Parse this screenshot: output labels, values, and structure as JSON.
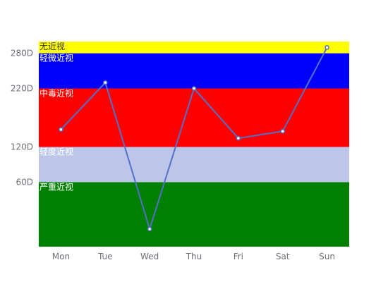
{
  "chart_data": {
    "type": "line",
    "categories": [
      "Mon",
      "Tue",
      "Wed",
      "Thu",
      "Fri",
      "Sat",
      "Sun"
    ],
    "series": [
      {
        "values": [
          150,
          230,
          -20,
          220,
          135,
          147,
          290
        ],
        "color": "#5470c6"
      }
    ],
    "yticks": [
      {
        "value": 60,
        "label": "60D"
      },
      {
        "value": 120,
        "label": "120D"
      },
      {
        "value": 220,
        "label": "220D"
      },
      {
        "value": 280,
        "label": "280D"
      }
    ],
    "ylim": [
      -50,
      300
    ],
    "bands": [
      {
        "from": 280,
        "to": 300,
        "label": "无近视",
        "color": "#ffff00",
        "label_color": "#333333"
      },
      {
        "from": 220,
        "to": 280,
        "label": "轻微近视",
        "color": "#0000ff",
        "label_color": "#ffffff"
      },
      {
        "from": 120,
        "to": 220,
        "label": "中毒近视",
        "color": "#ff0000",
        "label_color": "#ffffff"
      },
      {
        "from": 60,
        "to": 120,
        "label": "轻度近视",
        "color": "#bdc6e9",
        "label_color": "#ffffff"
      },
      {
        "from": -50,
        "to": 60,
        "label": "严重近视",
        "color": "#008000",
        "label_color": "#ffffff"
      }
    ],
    "grid": false,
    "title": "",
    "xlabel": "",
    "ylabel": ""
  }
}
